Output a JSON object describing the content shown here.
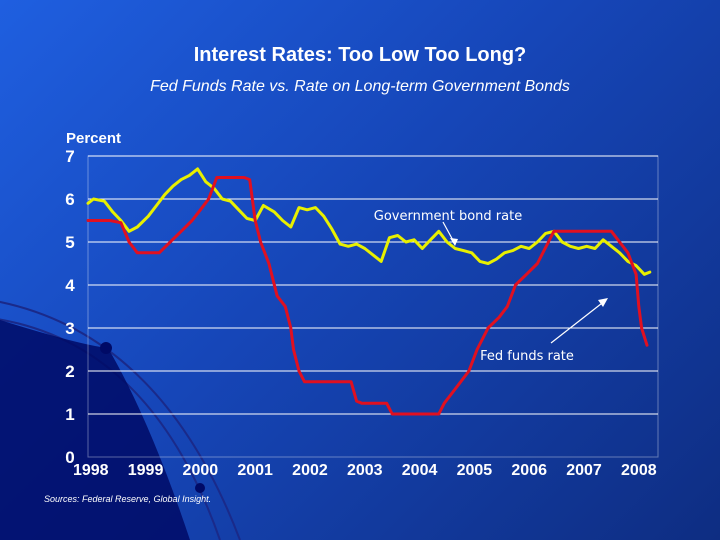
{
  "title": "Interest Rates: Too Low Too Long?",
  "subtitle": "Fed Funds Rate vs. Rate on Long-term Government Bonds",
  "source": "Sources: Federal Reserve, Global Insight.",
  "colors": {
    "bond": "#e8f000",
    "fed": "#e01020",
    "gridline": "#ffffff",
    "text": "#ffffff"
  },
  "chart_data": {
    "type": "line",
    "title": "Interest Rates: Too Low Too Long?",
    "subtitle": "Fed Funds Rate vs. Rate on Long-term Government Bonds",
    "ylabel": "Percent",
    "xlabel": "",
    "ylim": [
      0,
      7
    ],
    "xlim": [
      1998,
      2008.4
    ],
    "yticks": [
      "0",
      "1",
      "2",
      "3",
      "4",
      "5",
      "6",
      "7"
    ],
    "xticks": [
      "1998",
      "1999",
      "2000",
      "2001",
      "2002",
      "2003",
      "2004",
      "2005",
      "2006",
      "2007",
      "2008"
    ],
    "grid": true,
    "series": [
      {
        "name": "Government bond rate",
        "annotation": "Government bond rate",
        "points": [
          [
            1998.0,
            5.9
          ],
          [
            1998.1,
            6.0
          ],
          [
            1998.3,
            5.95
          ],
          [
            1998.45,
            5.7
          ],
          [
            1998.6,
            5.5
          ],
          [
            1998.75,
            5.25
          ],
          [
            1998.9,
            5.35
          ],
          [
            1999.1,
            5.6
          ],
          [
            1999.25,
            5.85
          ],
          [
            1999.4,
            6.1
          ],
          [
            1999.55,
            6.3
          ],
          [
            1999.7,
            6.45
          ],
          [
            1999.85,
            6.55
          ],
          [
            2000.0,
            6.7
          ],
          [
            2000.15,
            6.4
          ],
          [
            2000.3,
            6.25
          ],
          [
            2000.45,
            6.0
          ],
          [
            2000.6,
            5.95
          ],
          [
            2000.75,
            5.75
          ],
          [
            2000.9,
            5.55
          ],
          [
            2001.05,
            5.5
          ],
          [
            2001.2,
            5.85
          ],
          [
            2001.4,
            5.7
          ],
          [
            2001.55,
            5.5
          ],
          [
            2001.7,
            5.35
          ],
          [
            2001.85,
            5.8
          ],
          [
            2002.0,
            5.75
          ],
          [
            2002.15,
            5.8
          ],
          [
            2002.3,
            5.6
          ],
          [
            2002.45,
            5.3
          ],
          [
            2002.6,
            4.95
          ],
          [
            2002.75,
            4.9
          ],
          [
            2002.9,
            4.95
          ],
          [
            2003.05,
            4.85
          ],
          [
            2003.2,
            4.7
          ],
          [
            2003.35,
            4.55
          ],
          [
            2003.5,
            5.1
          ],
          [
            2003.65,
            5.15
          ],
          [
            2003.8,
            5.0
          ],
          [
            2003.95,
            5.05
          ],
          [
            2004.1,
            4.85
          ],
          [
            2004.25,
            5.05
          ],
          [
            2004.4,
            5.25
          ],
          [
            2004.55,
            5.0
          ],
          [
            2004.7,
            4.85
          ],
          [
            2004.85,
            4.8
          ],
          [
            2005.0,
            4.75
          ],
          [
            2005.15,
            4.55
          ],
          [
            2005.3,
            4.5
          ],
          [
            2005.45,
            4.6
          ],
          [
            2005.6,
            4.75
          ],
          [
            2005.75,
            4.8
          ],
          [
            2005.9,
            4.9
          ],
          [
            2006.05,
            4.85
          ],
          [
            2006.2,
            5.0
          ],
          [
            2006.35,
            5.2
          ],
          [
            2006.5,
            5.25
          ],
          [
            2006.65,
            5.0
          ],
          [
            2006.8,
            4.9
          ],
          [
            2006.95,
            4.85
          ],
          [
            2007.1,
            4.9
          ],
          [
            2007.25,
            4.85
          ],
          [
            2007.4,
            5.05
          ],
          [
            2007.55,
            4.9
          ],
          [
            2007.7,
            4.75
          ],
          [
            2007.85,
            4.55
          ],
          [
            2008.0,
            4.45
          ],
          [
            2008.15,
            4.25
          ],
          [
            2008.25,
            4.3
          ]
        ]
      },
      {
        "name": "Fed funds rate",
        "annotation": "Fed funds rate",
        "points": [
          [
            1998.0,
            5.5
          ],
          [
            1998.2,
            5.5
          ],
          [
            1998.4,
            5.5
          ],
          [
            1998.6,
            5.45
          ],
          [
            1998.75,
            5.0
          ],
          [
            1998.9,
            4.75
          ],
          [
            1999.1,
            4.75
          ],
          [
            1999.3,
            4.75
          ],
          [
            1999.5,
            5.0
          ],
          [
            1999.7,
            5.25
          ],
          [
            1999.9,
            5.5
          ],
          [
            2000.05,
            5.75
          ],
          [
            2000.2,
            6.0
          ],
          [
            2000.35,
            6.5
          ],
          [
            2000.5,
            6.5
          ],
          [
            2000.7,
            6.5
          ],
          [
            2000.85,
            6.5
          ],
          [
            2000.95,
            6.45
          ],
          [
            2001.05,
            5.5
          ],
          [
            2001.15,
            5.0
          ],
          [
            2001.3,
            4.5
          ],
          [
            2001.45,
            3.75
          ],
          [
            2001.6,
            3.5
          ],
          [
            2001.7,
            3.0
          ],
          [
            2001.75,
            2.5
          ],
          [
            2001.85,
            2.0
          ],
          [
            2001.95,
            1.75
          ],
          [
            2002.3,
            1.75
          ],
          [
            2002.6,
            1.75
          ],
          [
            2002.8,
            1.75
          ],
          [
            2002.9,
            1.3
          ],
          [
            2003.0,
            1.25
          ],
          [
            2003.3,
            1.25
          ],
          [
            2003.45,
            1.25
          ],
          [
            2003.55,
            1.0
          ],
          [
            2004.0,
            1.0
          ],
          [
            2004.4,
            1.0
          ],
          [
            2004.5,
            1.25
          ],
          [
            2004.65,
            1.5
          ],
          [
            2004.8,
            1.75
          ],
          [
            2004.95,
            2.0
          ],
          [
            2005.1,
            2.5
          ],
          [
            2005.3,
            3.0
          ],
          [
            2005.5,
            3.25
          ],
          [
            2005.65,
            3.5
          ],
          [
            2005.8,
            4.0
          ],
          [
            2006.0,
            4.25
          ],
          [
            2006.2,
            4.5
          ],
          [
            2006.4,
            5.0
          ],
          [
            2006.5,
            5.25
          ],
          [
            2006.8,
            5.25
          ],
          [
            2007.0,
            5.25
          ],
          [
            2007.3,
            5.25
          ],
          [
            2007.55,
            5.25
          ],
          [
            2007.7,
            5.0
          ],
          [
            2007.85,
            4.75
          ],
          [
            2008.0,
            4.25
          ],
          [
            2008.05,
            3.5
          ],
          [
            2008.1,
            3.0
          ],
          [
            2008.2,
            2.6
          ]
        ]
      }
    ]
  }
}
